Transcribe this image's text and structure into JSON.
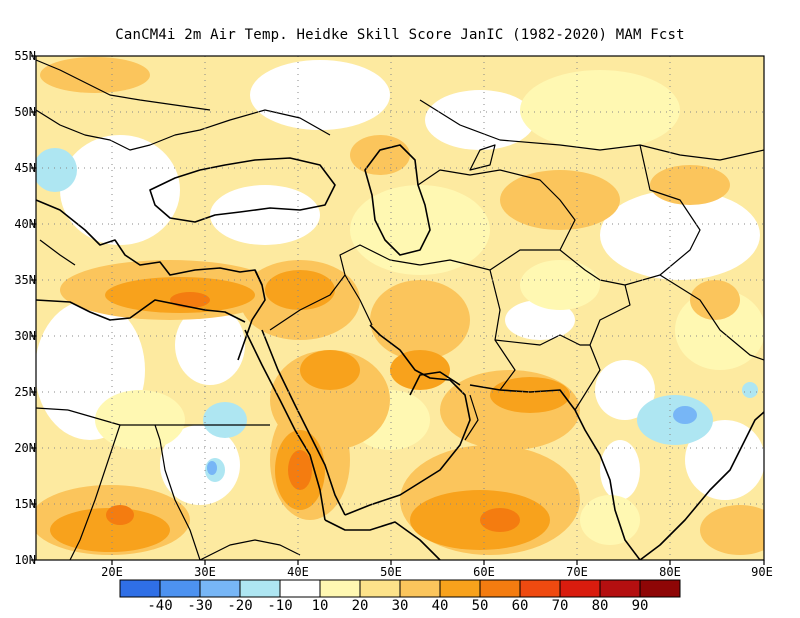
{
  "title": "CanCM4i  2m Air Temp. Heidke Skill Score JanIC (1982-2020) MAM Fcst",
  "latitude_labels": [
    "55N",
    "50N",
    "45N",
    "40N",
    "35N",
    "30N",
    "25N",
    "20N",
    "15N",
    "10N"
  ],
  "longitude_labels": [
    "20E",
    "30E",
    "40E",
    "50E",
    "60E",
    "70E",
    "80E",
    "90E"
  ],
  "colorbar": {
    "colors": [
      "#2f6fe6",
      "#4d92f0",
      "#77b6f6",
      "#aee6f2",
      "#ffffff",
      "#fff8b2",
      "#fde38a",
      "#fbc55c",
      "#f8a21c",
      "#f47c10",
      "#ef4a10",
      "#d91c0e",
      "#b40f10",
      "#8e0606"
    ],
    "labels": [
      "-40",
      "-30",
      "-20",
      "-10",
      "10",
      "20",
      "30",
      "40",
      "50",
      "60",
      "70",
      "80",
      "90"
    ]
  }
}
